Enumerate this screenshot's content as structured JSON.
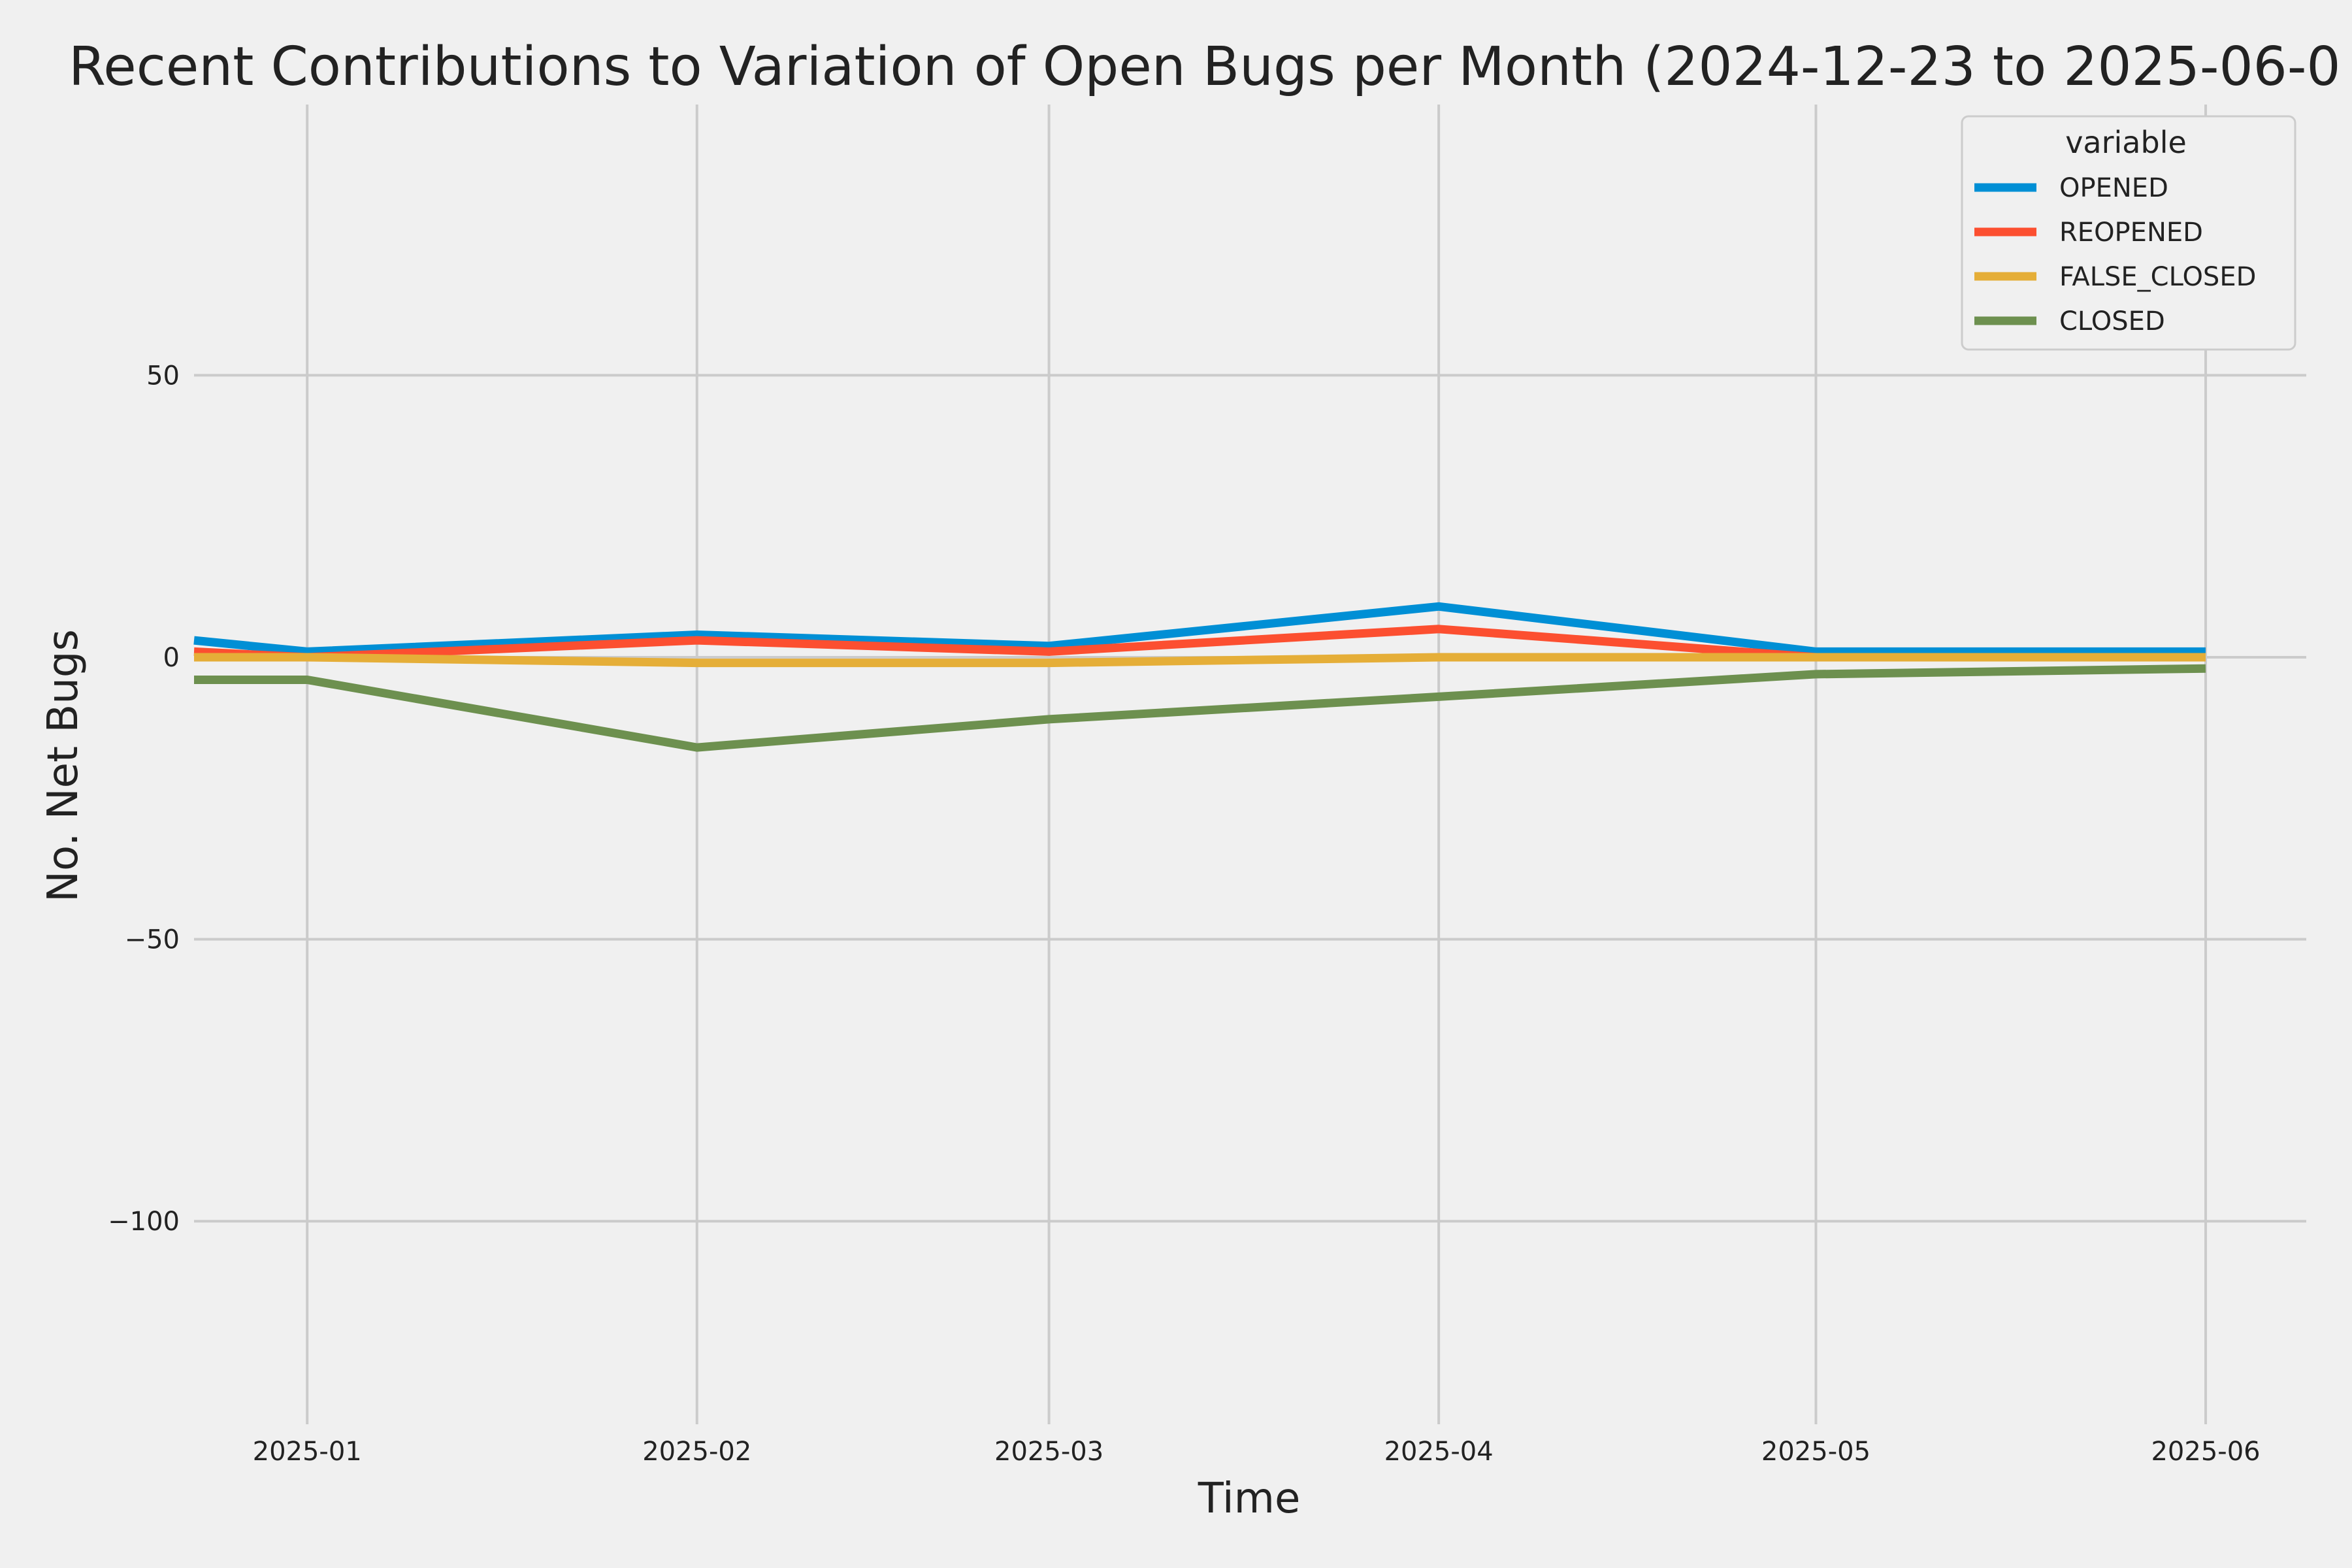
{
  "chart_data": {
    "type": "line",
    "title": "Recent Contributions to Variation of Open Bugs per Month (2024-12-23 to 2025-06-0",
    "xlabel": "Time",
    "ylabel": "No. Net Bugs",
    "x": [
      "2024-12-23",
      "2025-01-01",
      "2025-02-01",
      "2025-03-01",
      "2025-04-01",
      "2025-05-01",
      "2025-06-01"
    ],
    "xticks": [
      "2025-01-01",
      "2025-02-01",
      "2025-03-01",
      "2025-04-01",
      "2025-05-01",
      "2025-06-01"
    ],
    "xtick_labels": [
      "2025-01",
      "2025-02",
      "2025-03",
      "2025-04",
      "2025-05",
      "2025-06"
    ],
    "xlim": [
      "2024-12-23",
      "2025-06-09"
    ],
    "yticks": [
      50,
      0,
      -50,
      -100
    ],
    "ytick_labels": [
      "50",
      "0",
      "−50",
      "−100"
    ],
    "ylim": [
      -136,
      98
    ],
    "grid": true,
    "legend": {
      "title": "variable",
      "position": "top-right"
    },
    "series": [
      {
        "name": "OPENED",
        "color": "#008fd5",
        "values": [
          3,
          1,
          4,
          2,
          9,
          1,
          1
        ]
      },
      {
        "name": "REOPENED",
        "color": "#fc4f30",
        "values": [
          1,
          0,
          3,
          1,
          5,
          0,
          0
        ]
      },
      {
        "name": "FALSE_CLOSED",
        "color": "#e5ae38",
        "values": [
          0,
          0,
          -1,
          -1,
          0,
          0,
          0
        ]
      },
      {
        "name": "CLOSED",
        "color": "#6d904f",
        "values": [
          -4,
          -4,
          -16,
          -11,
          -7,
          -3,
          -2
        ]
      }
    ]
  }
}
